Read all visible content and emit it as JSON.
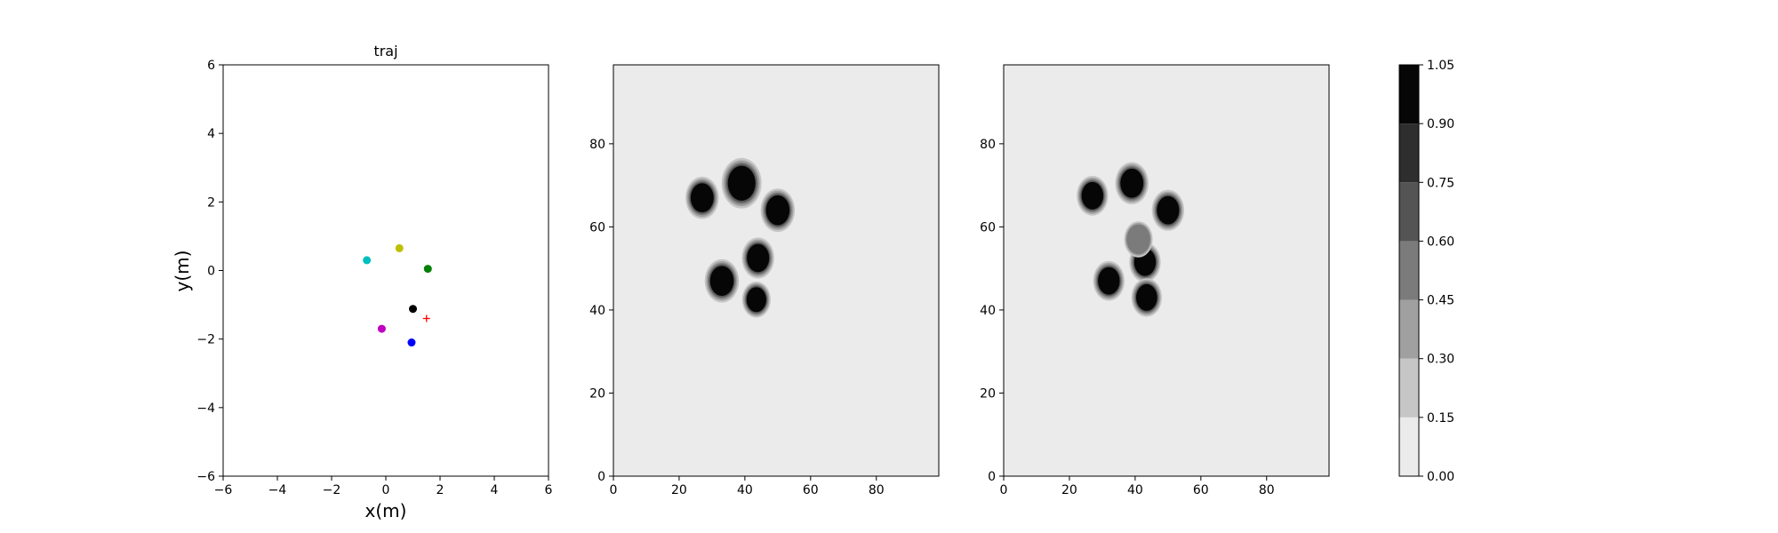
{
  "chart_data": [
    {
      "type": "scatter",
      "title": "traj",
      "xlabel": "x(m)",
      "ylabel": "y(m)",
      "xlim": [
        -6,
        6
      ],
      "ylim": [
        -6,
        6
      ],
      "xticks": [
        -6,
        -4,
        -2,
        0,
        2,
        4,
        6
      ],
      "yticks": [
        -6,
        -4,
        -2,
        0,
        2,
        4,
        6
      ],
      "grid": false,
      "points": [
        {
          "x": -0.7,
          "y": 0.3,
          "color": "#00bfbf",
          "marker": "circle"
        },
        {
          "x": 0.5,
          "y": 0.65,
          "color": "#bfbf00",
          "marker": "circle"
        },
        {
          "x": 1.55,
          "y": 0.05,
          "color": "#008000",
          "marker": "circle"
        },
        {
          "x": 1.0,
          "y": -1.12,
          "color": "#000000",
          "marker": "circle"
        },
        {
          "x": -0.15,
          "y": -1.7,
          "color": "#bf00bf",
          "marker": "circle"
        },
        {
          "x": 0.95,
          "y": -2.1,
          "color": "#0000ff",
          "marker": "circle"
        },
        {
          "x": 1.5,
          "y": -1.4,
          "color": "#ff0000",
          "marker": "plus"
        }
      ]
    },
    {
      "type": "heatmap",
      "title": "",
      "xlim": [
        0,
        99
      ],
      "ylim": [
        0,
        99
      ],
      "xticks": [
        0,
        20,
        40,
        60,
        80
      ],
      "yticks": [
        0,
        20,
        40,
        60,
        80
      ],
      "background_value": 0.05,
      "blobs": [
        {
          "x": 27,
          "y": 67,
          "r": 3.5,
          "value": 1.0
        },
        {
          "x": 39,
          "y": 70.5,
          "r": 4.2,
          "value": 1.0
        },
        {
          "x": 50,
          "y": 64,
          "r": 3.6,
          "value": 1.0
        },
        {
          "x": 44,
          "y": 52.5,
          "r": 3.4,
          "value": 1.0
        },
        {
          "x": 33,
          "y": 47,
          "r": 3.6,
          "value": 1.0
        },
        {
          "x": 43.5,
          "y": 42.5,
          "r": 3.0,
          "value": 1.0
        }
      ]
    },
    {
      "type": "heatmap",
      "title": "",
      "xlim": [
        0,
        99
      ],
      "ylim": [
        0,
        99
      ],
      "xticks": [
        0,
        20,
        40,
        60,
        80
      ],
      "yticks": [
        0,
        20,
        40,
        60,
        80
      ],
      "background_value": 0.05,
      "blobs": [
        {
          "x": 27,
          "y": 67.5,
          "r": 3.3,
          "value": 1.0
        },
        {
          "x": 39,
          "y": 70.5,
          "r": 3.5,
          "value": 1.0
        },
        {
          "x": 50,
          "y": 64,
          "r": 3.4,
          "value": 1.0
        },
        {
          "x": 32,
          "y": 47,
          "r": 3.3,
          "value": 1.0
        },
        {
          "x": 43,
          "y": 51.5,
          "r": 3.3,
          "value": 1.0
        },
        {
          "x": 43.5,
          "y": 43,
          "r": 3.2,
          "value": 1.0
        },
        {
          "x": 41,
          "y": 57,
          "r": 3.0,
          "value": 0.5
        }
      ]
    }
  ],
  "colorbar": {
    "levels": [
      0.0,
      0.15,
      0.3,
      0.45,
      0.6,
      0.75,
      0.9,
      1.05
    ],
    "tick_labels": [
      "0.00",
      "0.15",
      "0.30",
      "0.45",
      "0.60",
      "0.75",
      "0.90",
      "1.05"
    ],
    "colors": [
      "#ebebeb",
      "#c6c6c6",
      "#a0a0a0",
      "#7b7b7b",
      "#545454",
      "#2e2e2e",
      "#060606"
    ]
  }
}
